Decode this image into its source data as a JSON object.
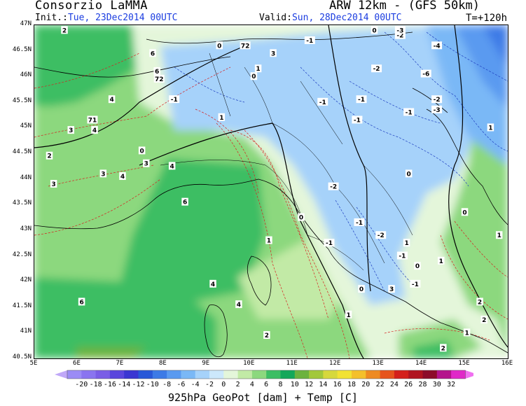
{
  "header": {
    "org": "Consorzio LaMMA",
    "model": "ARW 12km - (GFS 50km)",
    "init_label": "Init.:",
    "init_value": "Tue, 23Dec2014 00UTC",
    "valid_label": "Valid:",
    "valid_value": "Sun, 28Dec2014 00UTC",
    "step": "T=+120h"
  },
  "axes": {
    "lat_labels": [
      "47N",
      "46.5N",
      "46N",
      "45.5N",
      "45N",
      "44.5N",
      "44N",
      "43.5N",
      "43N",
      "42.5N",
      "42N",
      "41.5N",
      "41N",
      "40.5N"
    ],
    "lon_labels": [
      "5E",
      "6E",
      "7E",
      "8E",
      "9E",
      "10E",
      "11E",
      "12E",
      "13E",
      "14E",
      "15E",
      "16E"
    ]
  },
  "colorbar": {
    "labels": [
      "-20",
      "-18",
      "-16",
      "-14",
      "-12",
      "-10",
      "-8",
      "-6",
      "-4",
      "-2",
      "0",
      "2",
      "4",
      "6",
      "8",
      "10",
      "12",
      "14",
      "16",
      "18",
      "20",
      "22",
      "24",
      "26",
      "28",
      "30",
      "32"
    ],
    "colors": [
      "#9b8cf5",
      "#8a74f0",
      "#7a5de6",
      "#5a46dd",
      "#3a36d2",
      "#2858d8",
      "#3c7ae6",
      "#5a9af0",
      "#7ab8f6",
      "#a6d2fa",
      "#cce8fc",
      "#e4f6da",
      "#c2eaa6",
      "#8cd87e",
      "#3cbe64",
      "#14a85a",
      "#6cb23e",
      "#a2c83a",
      "#d6d83c",
      "#f2e234",
      "#f4c02c",
      "#ee8a22",
      "#e6541e",
      "#d4201c",
      "#b01420",
      "#8c0c2a",
      "#b4148c",
      "#e028c8"
    ],
    "arrow_left_color": "#c0a8f8",
    "arrow_right_color": "#f070f0",
    "caption": "925hPa GeoPot [dam] + Temp [C]"
  },
  "contour_labels": [
    {
      "t": "2",
      "lon": 5.7,
      "lat": 46.9
    },
    {
      "t": "6",
      "lon": 7.75,
      "lat": 46.45
    },
    {
      "t": "72",
      "lon": 9.9,
      "lat": 46.6
    },
    {
      "t": "0",
      "lon": 9.3,
      "lat": 46.6
    },
    {
      "t": "3",
      "lon": 10.55,
      "lat": 46.45
    },
    {
      "t": "1",
      "lon": 10.2,
      "lat": 46.15
    },
    {
      "t": "0",
      "lon": 10.1,
      "lat": 46.0
    },
    {
      "t": "-1",
      "lon": 8.25,
      "lat": 45.55
    },
    {
      "t": "6",
      "lon": 7.85,
      "lat": 46.1
    },
    {
      "t": "72",
      "lon": 7.9,
      "lat": 45.95
    },
    {
      "t": "4",
      "lon": 6.8,
      "lat": 45.55
    },
    {
      "t": "71",
      "lon": 6.35,
      "lat": 45.15
    },
    {
      "t": "3",
      "lon": 5.85,
      "lat": 44.95
    },
    {
      "t": "4",
      "lon": 6.4,
      "lat": 44.95
    },
    {
      "t": "2",
      "lon": 5.35,
      "lat": 44.45
    },
    {
      "t": "3",
      "lon": 6.6,
      "lat": 44.1
    },
    {
      "t": "3",
      "lon": 5.45,
      "lat": 43.9
    },
    {
      "t": "4",
      "lon": 7.05,
      "lat": 44.05
    },
    {
      "t": "0",
      "lon": 7.5,
      "lat": 44.55
    },
    {
      "t": "3",
      "lon": 7.6,
      "lat": 44.3
    },
    {
      "t": "4",
      "lon": 8.2,
      "lat": 44.25
    },
    {
      "t": "1",
      "lon": 9.35,
      "lat": 45.2
    },
    {
      "t": "6",
      "lon": 8.5,
      "lat": 43.55
    },
    {
      "t": "-1",
      "lon": 11.4,
      "lat": 46.7
    },
    {
      "t": "0",
      "lon": 12.9,
      "lat": 46.9
    },
    {
      "t": "-2",
      "lon": 13.5,
      "lat": 46.8
    },
    {
      "t": "-3",
      "lon": 13.5,
      "lat": 46.9
    },
    {
      "t": "-4",
      "lon": 14.35,
      "lat": 46.6
    },
    {
      "t": "-2",
      "lon": 12.95,
      "lat": 46.15
    },
    {
      "t": "-6",
      "lon": 14.1,
      "lat": 46.05
    },
    {
      "t": "-1",
      "lon": 11.7,
      "lat": 45.5
    },
    {
      "t": "-1",
      "lon": 12.6,
      "lat": 45.55
    },
    {
      "t": "-1",
      "lon": 12.5,
      "lat": 45.15
    },
    {
      "t": "-1",
      "lon": 13.7,
      "lat": 45.3
    },
    {
      "t": "-2",
      "lon": 14.35,
      "lat": 45.55
    },
    {
      "t": "-3",
      "lon": 14.35,
      "lat": 45.35
    },
    {
      "t": "0",
      "lon": 13.7,
      "lat": 44.1
    },
    {
      "t": "-2",
      "lon": 11.95,
      "lat": 43.85
    },
    {
      "t": "0",
      "lon": 11.2,
      "lat": 43.25
    },
    {
      "t": "-1",
      "lon": 12.55,
      "lat": 43.15
    },
    {
      "t": "-2",
      "lon": 13.05,
      "lat": 42.9
    },
    {
      "t": "-1",
      "lon": 11.85,
      "lat": 42.75
    },
    {
      "t": "-1",
      "lon": 13.55,
      "lat": 42.5
    },
    {
      "t": "1",
      "lon": 13.65,
      "lat": 42.75
    },
    {
      "t": "0",
      "lon": 13.9,
      "lat": 42.3
    },
    {
      "t": "1",
      "lon": 14.45,
      "lat": 42.4
    },
    {
      "t": "0",
      "lon": 15.0,
      "lat": 43.35
    },
    {
      "t": "1",
      "lon": 15.8,
      "lat": 42.9
    },
    {
      "t": "-1",
      "lon": 13.85,
      "lat": 41.95
    },
    {
      "t": "0",
      "lon": 12.6,
      "lat": 41.85
    },
    {
      "t": "3",
      "lon": 13.3,
      "lat": 41.85
    },
    {
      "t": "2",
      "lon": 15.35,
      "lat": 41.6
    },
    {
      "t": "2",
      "lon": 15.45,
      "lat": 41.25
    },
    {
      "t": "1",
      "lon": 12.3,
      "lat": 41.35
    },
    {
      "t": "1",
      "lon": 15.05,
      "lat": 41.0
    },
    {
      "t": "2",
      "lon": 14.5,
      "lat": 40.7
    },
    {
      "t": "2",
      "lon": 10.4,
      "lat": 40.95
    },
    {
      "t": "4",
      "lon": 9.15,
      "lat": 41.95
    },
    {
      "t": "4",
      "lon": 9.75,
      "lat": 41.55
    },
    {
      "t": "6",
      "lon": 6.1,
      "lat": 41.6
    },
    {
      "t": "1",
      "lon": 10.45,
      "lat": 42.8
    },
    {
      "t": "1",
      "lon": 15.6,
      "lat": 45.0
    }
  ]
}
